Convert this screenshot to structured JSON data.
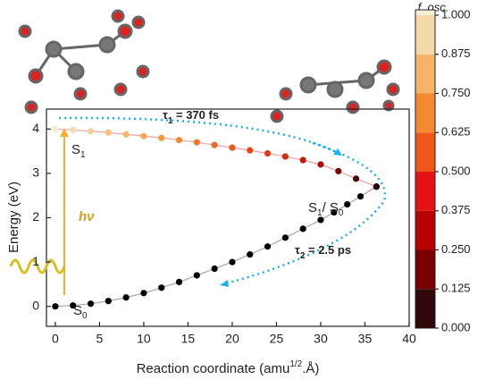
{
  "chart_data": {
    "type": "scatter",
    "xlabel": [
      "Reaction coordinate (amu",
      "1/2",
      ".Å)"
    ],
    "ylabel": "Energy (eV)",
    "xlim": [
      -1,
      40
    ],
    "ylim": [
      -0.45,
      4.45
    ],
    "xticks": [
      0,
      5,
      10,
      15,
      20,
      25,
      30,
      35,
      40
    ],
    "yticks": [
      0,
      1,
      2,
      3,
      4
    ],
    "series": [
      {
        "color": "#000000",
        "line_color": "#b8a0a0",
        "x": [
          0,
          2,
          4,
          6,
          8,
          10,
          12,
          14,
          16,
          18,
          20,
          22,
          24,
          26,
          28,
          30,
          31.5,
          33,
          34.5,
          36.3
        ],
        "values": [
          0,
          0.02,
          0.06,
          0.12,
          0.2,
          0.3,
          0.42,
          0.55,
          0.7,
          0.85,
          1.0,
          1.17,
          1.35,
          1.55,
          1.75,
          1.95,
          2.12,
          2.3,
          2.48,
          2.7
        ]
      },
      {
        "line_color": "#f4a0a0",
        "x": [
          0,
          2,
          4,
          6,
          8,
          10,
          12,
          14,
          16,
          18,
          20,
          22,
          24,
          26,
          28,
          30,
          32,
          34,
          36.3
        ],
        "values": [
          4.0,
          3.98,
          3.95,
          3.92,
          3.88,
          3.84,
          3.8,
          3.75,
          3.7,
          3.64,
          3.58,
          3.52,
          3.45,
          3.38,
          3.3,
          3.2,
          3.05,
          2.88,
          2.7
        ],
        "colors": [
          "#f3eccd",
          "#f5dcb0",
          "#f6cf98",
          "#f7c27e",
          "#f7b66a",
          "#f6a850",
          "#f59a3e",
          "#f38a30",
          "#f07a28",
          "#ee6a20",
          "#ea5a1a",
          "#e54a16",
          "#df3a12",
          "#d42a10",
          "#c41c0c",
          "#a8100a",
          "#7a0a08",
          "#4a0808",
          "#2a0505"
        ]
      }
    ],
    "annotations": {
      "s1": [
        "S",
        "1"
      ],
      "s1s0": [
        "S",
        "1",
        "/ S",
        "0"
      ],
      "s0": [
        "S",
        "0"
      ],
      "hv": "hν",
      "tau1": [
        "τ",
        "1",
        " = 370 fs"
      ],
      "tau2": [
        "τ",
        "2",
        " = 2.5 ps"
      ]
    },
    "colorbar": {
      "title": "f. osc.",
      "ticks": [
        {
          "value": 0,
          "label": "0.000"
        },
        {
          "value": 0.125,
          "label": "0.125"
        },
        {
          "value": 0.25,
          "label": "0.250"
        },
        {
          "value": 0.375,
          "label": "0.375"
        },
        {
          "value": 0.5,
          "label": "0.500"
        },
        {
          "value": 0.625,
          "label": "0.625"
        },
        {
          "value": 0.75,
          "label": "0.750"
        },
        {
          "value": 0.875,
          "label": "0.875"
        },
        {
          "value": 1,
          "label": "1.000"
        }
      ],
      "colors": [
        "#300808",
        "#7a0000",
        "#b80000",
        "#e41212",
        "#f0561a",
        "#f5892f",
        "#f7b468",
        "#f6d9a8",
        "#f2f0d4"
      ]
    }
  }
}
